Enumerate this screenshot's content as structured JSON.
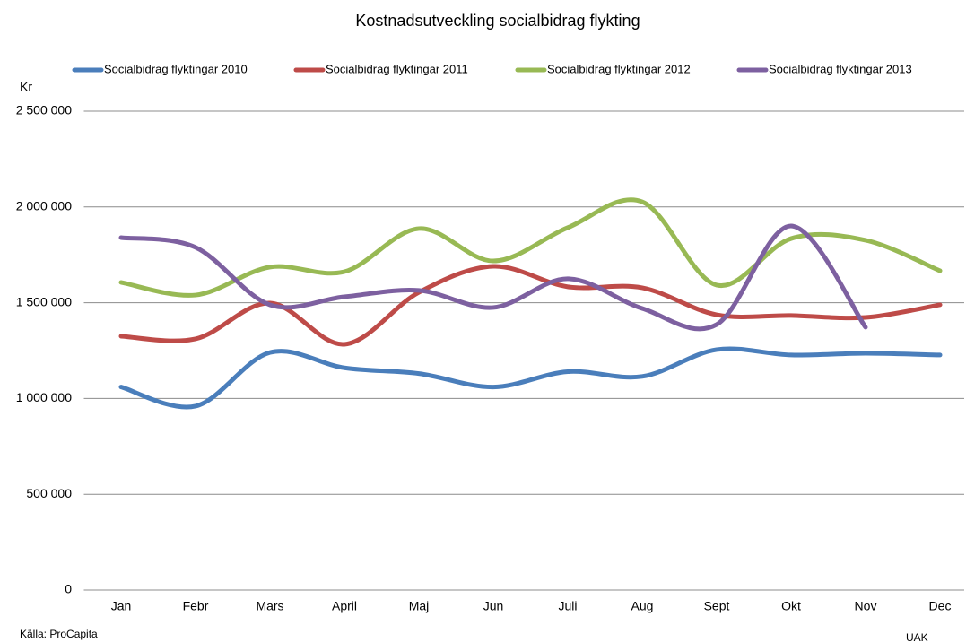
{
  "chart_data": {
    "type": "line",
    "title": "Kostnadsutveckling  socialbidrag  flykting",
    "y_label": "Kr",
    "source": "Källa: ProCapita",
    "footer": "UAK",
    "categories": [
      "Jan",
      "Febr",
      "Mars",
      "April",
      "Maj",
      "Jun",
      "Juli",
      "Aug",
      "Sept",
      "Okt",
      "Nov",
      "Dec"
    ],
    "series": [
      {
        "name": "Socialbidrag flyktingar 2010",
        "color": "#4a7ebb",
        "values": [
          1060000,
          960000,
          1240000,
          1160000,
          1130000,
          1060000,
          1140000,
          1115000,
          1255000,
          1227000,
          1236000,
          1227000
        ]
      },
      {
        "name": "Socialbidrag flyktingar 2011",
        "color": "#be4b48",
        "values": [
          1325000,
          1311000,
          1498000,
          1283000,
          1554000,
          1690000,
          1583000,
          1578000,
          1437000,
          1433000,
          1423000,
          1489000
        ]
      },
      {
        "name": "Socialbidrag flyktingar 2012",
        "color": "#98b954",
        "values": [
          1606000,
          1540000,
          1686000,
          1662000,
          1887000,
          1718000,
          1892000,
          2027000,
          1592000,
          1835000,
          1826000,
          1667000
        ]
      },
      {
        "name": "Socialbidrag flyktingar 2013",
        "color": "#7d60a0",
        "values": [
          1840000,
          1789000,
          1489000,
          1531000,
          1564000,
          1475000,
          1625000,
          1470000,
          1386000,
          1901000,
          1372000,
          null
        ]
      }
    ],
    "ylim": [
      0,
      2500000
    ],
    "yticks": [
      0,
      {
        "value": 500000,
        "label": "500 000"
      },
      {
        "value": 1000000,
        "label": "1 000 000"
      },
      {
        "value": 1500000,
        "label": "1 500 000"
      },
      {
        "value": 2000000,
        "label": "2 000 000"
      },
      {
        "value": 2500000,
        "label": "2 500 000"
      }
    ],
    "grid": true,
    "legend": "top"
  }
}
